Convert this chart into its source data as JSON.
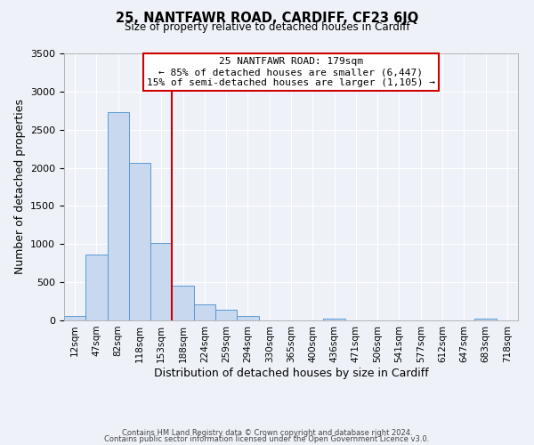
{
  "title": "25, NANTFAWR ROAD, CARDIFF, CF23 6JQ",
  "subtitle": "Size of property relative to detached houses in Cardiff",
  "xlabel": "Distribution of detached houses by size in Cardiff",
  "ylabel": "Number of detached properties",
  "bar_color": "#c8d8ee",
  "bar_edge_color": "#5a9ad4",
  "background_color": "#eef2f8",
  "grid_color": "#ffffff",
  "bin_labels": [
    "12sqm",
    "47sqm",
    "82sqm",
    "118sqm",
    "153sqm",
    "188sqm",
    "224sqm",
    "259sqm",
    "294sqm",
    "330sqm",
    "365sqm",
    "400sqm",
    "436sqm",
    "471sqm",
    "506sqm",
    "541sqm",
    "577sqm",
    "612sqm",
    "647sqm",
    "683sqm",
    "718sqm"
  ],
  "bar_heights": [
    60,
    860,
    2730,
    2070,
    1020,
    455,
    215,
    145,
    55,
    0,
    0,
    0,
    25,
    0,
    0,
    0,
    0,
    0,
    0,
    20,
    0
  ],
  "ylim": [
    0,
    3500
  ],
  "yticks": [
    0,
    500,
    1000,
    1500,
    2000,
    2500,
    3000,
    3500
  ],
  "property_line_label": "25 NANTFAWR ROAD: 179sqm",
  "annotation_line1": "← 85% of detached houses are smaller (6,447)",
  "annotation_line2": "15% of semi-detached houses are larger (1,105) →",
  "annotation_box_color": "#ffffff",
  "annotation_box_edge_color": "#cc0000",
  "footer_line1": "Contains HM Land Registry data © Crown copyright and database right 2024.",
  "footer_line2": "Contains public sector information licensed under the Open Government Licence v3.0."
}
